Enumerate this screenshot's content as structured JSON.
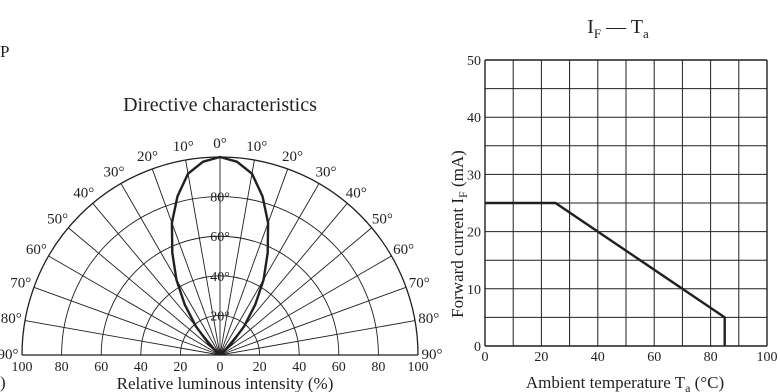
{
  "page": {
    "corner_fragment_top": "P",
    "corner_fragment_bottom": ")"
  },
  "colors": {
    "ink": "#231f20",
    "background": "#ffffff"
  },
  "chart_data": [
    {
      "type": "polar",
      "title": "Directive characteristics",
      "xlabel": "Relative luminous intensity  (%)",
      "radial_ticks": [
        "100",
        "80",
        "60",
        "40",
        "20",
        "0",
        "20",
        "40",
        "60",
        "80",
        "100"
      ],
      "angle_ticks": [
        "0°",
        "10°",
        "10°",
        "20°",
        "20°",
        "30°",
        "30°",
        "40°",
        "40°",
        "50°",
        "50°",
        "60°",
        "60°",
        "70°",
        "70°",
        "80°",
        "80°",
        "90°",
        "90°"
      ],
      "inner_angle_labels": [
        "80°",
        "60°",
        "40°",
        "20°"
      ],
      "grid": true,
      "series": [
        {
          "angles_deg": [
            0,
            5,
            10,
            15,
            20,
            25,
            30,
            35,
            40,
            45,
            50
          ],
          "values_pct": [
            100,
            98,
            93,
            83,
            71,
            57,
            44,
            31,
            19,
            8,
            0
          ]
        }
      ]
    },
    {
      "type": "line",
      "title": "I",
      "title_sub1": "F",
      "title_dash": " — T",
      "title_sub2": "a",
      "xlabel": "Ambient temperature  T",
      "xlabel_sub": "a",
      "xlabel_unit": " (°C)",
      "ylabel": "Forward current  I",
      "ylabel_sub": "F",
      "ylabel_unit": "  (mA)",
      "xlim": [
        0,
        100
      ],
      "ylim": [
        0,
        50
      ],
      "x_ticks": [
        "0",
        "20",
        "40",
        "60",
        "80",
        "100"
      ],
      "y_ticks": [
        "0",
        "10",
        "20",
        "30",
        "40",
        "50"
      ],
      "grid": true,
      "series": [
        {
          "x": [
            0,
            25,
            85,
            85
          ],
          "y": [
            25,
            25,
            5,
            0
          ]
        }
      ]
    }
  ]
}
